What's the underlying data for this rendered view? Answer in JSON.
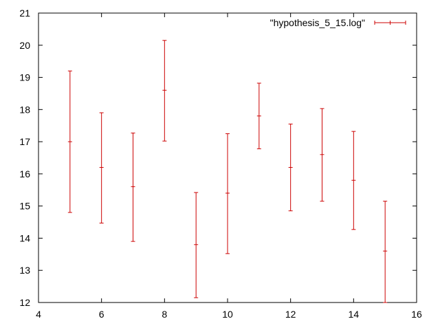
{
  "chart_data": {
    "type": "errorbar",
    "title": "",
    "xlabel": "",
    "ylabel": "",
    "xlim": [
      4,
      16
    ],
    "ylim": [
      12,
      21
    ],
    "x_ticks": [
      4,
      6,
      8,
      10,
      12,
      14,
      16
    ],
    "y_ticks": [
      12,
      13,
      14,
      15,
      16,
      17,
      18,
      19,
      20,
      21
    ],
    "grid": false,
    "legend_position": "top-right",
    "series": [
      {
        "name": "\"hypothesis_5_15.log\"",
        "color": "#cc0000",
        "points": [
          {
            "x": 5,
            "y": 17.0,
            "low": 14.8,
            "high": 19.2
          },
          {
            "x": 6,
            "y": 16.2,
            "low": 14.47,
            "high": 17.9
          },
          {
            "x": 7,
            "y": 15.6,
            "low": 13.9,
            "high": 17.27
          },
          {
            "x": 8,
            "y": 18.6,
            "low": 17.02,
            "high": 20.15
          },
          {
            "x": 9,
            "y": 13.8,
            "low": 12.15,
            "high": 15.42
          },
          {
            "x": 10,
            "y": 15.4,
            "low": 13.52,
            "high": 17.25
          },
          {
            "x": 11,
            "y": 17.8,
            "low": 16.78,
            "high": 18.82
          },
          {
            "x": 12,
            "y": 16.2,
            "low": 14.85,
            "high": 17.55
          },
          {
            "x": 13,
            "y": 16.6,
            "low": 15.15,
            "high": 18.03
          },
          {
            "x": 14,
            "y": 15.8,
            "low": 14.27,
            "high": 17.32
          },
          {
            "x": 15,
            "y": 13.6,
            "low": 12.0,
            "high": 15.15
          }
        ]
      }
    ]
  }
}
